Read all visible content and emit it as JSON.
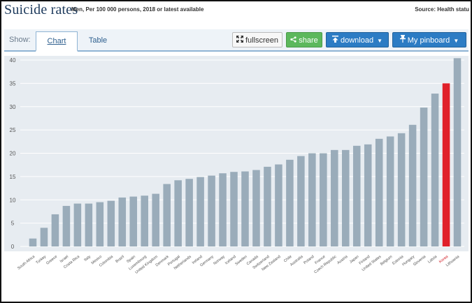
{
  "header": {
    "title": "Suicide rates",
    "subtitle": "Men, Per 100 000 persons, 2018 or latest available",
    "source": "Source: Health statu"
  },
  "toolbar": {
    "show_label": "Show:",
    "tab_chart": "Chart",
    "tab_table": "Table",
    "fullscreen_label": "fullscreen",
    "share_label": "share",
    "download_label": "download",
    "pinboard_label": "My pinboard"
  },
  "icons": {
    "fullscreen": "expand-arrows-icon",
    "share": "share-icon",
    "download": "download-icon",
    "pinboard": "pin-icon",
    "dropdown": "chevron-down-icon"
  },
  "colors": {
    "bar": "#9aacba",
    "highlight": "#e0202a",
    "plot_background": "#e7ecf1",
    "accent_blue": "#2c7cc4",
    "share_green": "#5cb85c"
  },
  "chart_data": {
    "type": "bar",
    "title": "Suicide rates",
    "subtitle": "Men, Per 100 000 persons, 2018 or latest available",
    "xlabel": "",
    "ylabel": "",
    "ylim": [
      0,
      40
    ],
    "yticks": [
      0,
      5,
      10,
      15,
      20,
      25,
      30,
      35,
      40
    ],
    "grid": true,
    "legend": "none",
    "highlight_category": "Korea",
    "categories": [
      "South Africa",
      "Turkey",
      "Greece",
      "Israel",
      "Costa Rica",
      "Italy",
      "Mexico",
      "Colombia",
      "Brazil",
      "Spain",
      "Luxembourg",
      "United Kingdom",
      "Denmark",
      "Portugal",
      "Netherlands",
      "Ireland",
      "Germany",
      "Norway",
      "Iceland",
      "Sweden",
      "Canada",
      "Switzerland",
      "New Zealand",
      "Chile",
      "Australia",
      "Poland",
      "France",
      "Czech Republic",
      "Austria",
      "Japan",
      "Finland",
      "United States",
      "Belgium",
      "Estonia",
      "Hungary",
      "Slovenia",
      "Latvia",
      "Korea",
      "Lithuania"
    ],
    "values": [
      1.7,
      4.0,
      6.9,
      8.7,
      9.2,
      9.2,
      9.5,
      9.8,
      10.5,
      10.7,
      10.9,
      11.3,
      13.4,
      14.2,
      14.5,
      14.9,
      15.2,
      15.7,
      16.0,
      16.1,
      16.4,
      17.1,
      17.6,
      18.6,
      19.4,
      20.0,
      20.0,
      20.7,
      20.7,
      21.6,
      21.9,
      23.1,
      23.6,
      24.3,
      26.1,
      29.8,
      32.8,
      35.0,
      40.4
    ]
  }
}
